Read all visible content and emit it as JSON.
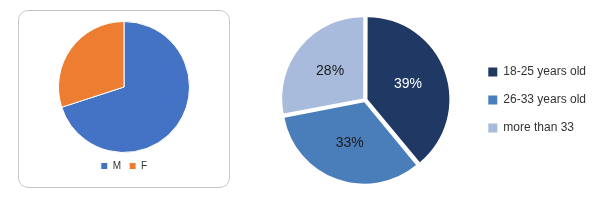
{
  "chart_data": [
    {
      "type": "pie",
      "categories": [
        "M",
        "F"
      ],
      "values": [
        70,
        30
      ],
      "colors": [
        "#4472c4",
        "#ed7d31"
      ],
      "legend": "bottom"
    },
    {
      "type": "pie",
      "categories": [
        "18-25 years old",
        "26-33 years old",
        "more than 33"
      ],
      "values": [
        39,
        33,
        28
      ],
      "value_labels": [
        "39%",
        "33%",
        "28%"
      ],
      "colors": [
        "#1f3864",
        "#4a7ebb",
        "#a8bbdc"
      ],
      "data_labels": true,
      "legend": "right"
    }
  ]
}
